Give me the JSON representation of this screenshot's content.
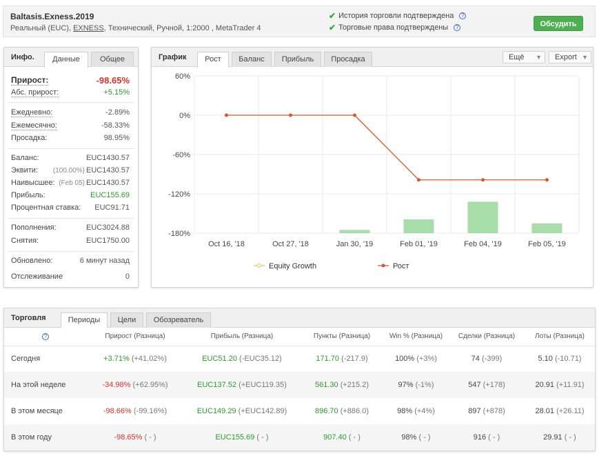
{
  "header": {
    "title": "Baltasis.Exness.2019",
    "subtitle_prefix": "Реальный (EUC),",
    "broker": "EXNESS",
    "subtitle_suffix": ", Технический, Ручной, 1:2000 , MetaTrader 4",
    "verify_history": "История торговли подтверждена",
    "verify_rights": "Торговые права подтверждены",
    "discuss_button": "Обсудить"
  },
  "info": {
    "title": "Инфо.",
    "tabs": [
      "Данные",
      "Общее"
    ],
    "growth_label": "Прирост:",
    "growth_value": "-98.65%",
    "abs_growth_label": "Абс. прирост:",
    "abs_growth_value": "+5.15%",
    "daily_label": "Ежедневно:",
    "daily_value": "-2.89%",
    "monthly_label": "Ежемесячно:",
    "monthly_value": "-58.33%",
    "drawdown_label": "Просадка:",
    "drawdown_value": "98.95%",
    "balance_label": "Баланс:",
    "balance_value": "EUC1430.57",
    "equity_label": "Эквити:",
    "equity_note": "(100.00%)",
    "equity_value": "EUC1430.57",
    "highest_label": "Наивысшее:",
    "highest_note": "(Feb 05)",
    "highest_value": "EUC1430.57",
    "profit_label": "Прибыль:",
    "profit_value": "EUC155.69",
    "interest_label": "Процентная ставка:",
    "interest_value": "EUC91.71",
    "deposits_label": "Пополнения:",
    "deposits_value": "EUC3024.88",
    "withdrawals_label": "Снятия:",
    "withdrawals_value": "EUC1750.00",
    "updated_label": "Обновлено:",
    "updated_value": "6 минут назад",
    "tracking_label": "Отслеживание",
    "tracking_value": "0"
  },
  "chart_panel": {
    "title": "График",
    "tabs": [
      "Рост",
      "Баланс",
      "Прибыль",
      "Просадка"
    ],
    "more_button": "Ещё",
    "export_button": "Export"
  },
  "chart_data": {
    "type": "line",
    "categories": [
      "Oct 16, '18",
      "Oct 27, '18",
      "Jan 30, '19",
      "Feb 01, '19",
      "Feb 04, '19",
      "Feb 05, '19"
    ],
    "y_ticks": [
      "60%",
      "0%",
      "-60%",
      "-120%",
      "-180%"
    ],
    "ylim": [
      -180,
      60
    ],
    "series": [
      {
        "name": "Equity Growth",
        "type": "bar",
        "color": "#a8dca8",
        "values": [
          -180,
          -180,
          -175,
          -159,
          -132,
          -165
        ]
      },
      {
        "name": "Рост",
        "type": "line",
        "color": "#d9542b",
        "values": [
          0,
          0,
          0,
          -98.65,
          -98.65,
          -98.65
        ]
      }
    ],
    "legend": [
      "Equity Growth",
      "Рост"
    ],
    "legend_placement": "bottom",
    "grid": true
  },
  "trading": {
    "title": "Торговля",
    "tabs": [
      "Периоды",
      "Цели",
      "Обозреватель"
    ],
    "columns": [
      "Прирост (Разница)",
      "Прибыль (Разница)",
      "Пункты (Разница)",
      "Win % (Разница)",
      "Сделки (Разница)",
      "Лоты (Разница)"
    ],
    "rows": [
      {
        "period": "Сегодня",
        "growth": "+3.71%",
        "growth_diff": "(+41.02%)",
        "profit": "EUC51.20",
        "profit_diff": "(-EUC35.12)",
        "pips": "171.70",
        "pips_diff": "(-217.9)",
        "win": "100%",
        "win_diff": "(+3%)",
        "trades": "74",
        "trades_diff": "(-399)",
        "lots": "5.10",
        "lots_diff": "(-10.71)"
      },
      {
        "period": "На этой неделе",
        "growth": "-34.98%",
        "growth_diff": "(+62.95%)",
        "profit": "EUC137.52",
        "profit_diff": "(+EUC119.35)",
        "pips": "561.30",
        "pips_diff": "(+215.2)",
        "win": "97%",
        "win_diff": "(-1%)",
        "trades": "547",
        "trades_diff": "(+178)",
        "lots": "20.91",
        "lots_diff": "(+11.91)"
      },
      {
        "period": "В этом месяце",
        "growth": "-98.66%",
        "growth_diff": "(-99.16%)",
        "profit": "EUC149.29",
        "profit_diff": "(+EUC142.89)",
        "pips": "896.70",
        "pips_diff": "(+886.0)",
        "win": "98%",
        "win_diff": "(+4%)",
        "trades": "897",
        "trades_diff": "(+878)",
        "lots": "28.01",
        "lots_diff": "(+26.11)"
      },
      {
        "period": "В этом году",
        "growth": "-98.65%",
        "growth_diff": "( - )",
        "profit": "EUC155.69",
        "profit_diff": "( - )",
        "pips": "907.40",
        "pips_diff": "( - )",
        "win": "98%",
        "win_diff": "( - )",
        "trades": "916",
        "trades_diff": "( - )",
        "lots": "29.91",
        "lots_diff": "( - )"
      }
    ]
  }
}
